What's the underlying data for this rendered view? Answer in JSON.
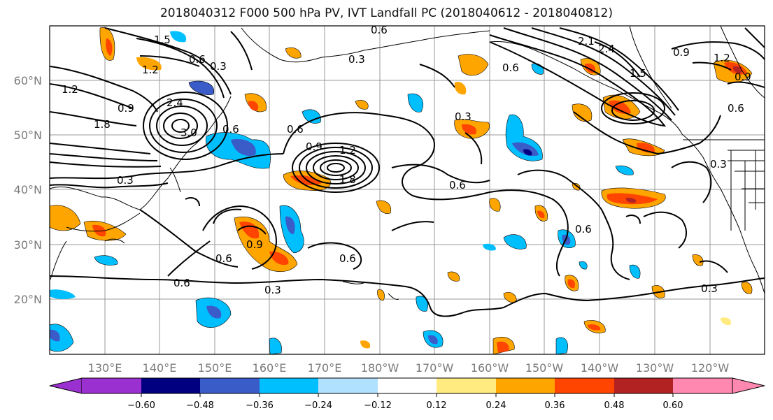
{
  "title": "2018040312 F000 500 hPa PV, IVT Landfall PC (2018040612 - 2018040812)",
  "lat_labels": [
    "60°N",
    "50°N",
    "40°N",
    "30°N",
    "20°N"
  ],
  "lon_labels": [
    "130°E",
    "140°E",
    "150°E",
    "160°E",
    "170°E",
    "180°W",
    "170°W",
    "160°W",
    "150°W",
    "140°W",
    "130°W",
    "120°W"
  ],
  "contour_labels": [
    "1.5",
    "1.8",
    "1.2",
    "0.9",
    "1.2",
    "2.4",
    "3.0",
    "0.6",
    "0.3",
    "0.6",
    "0.3",
    "0.6",
    "0.9",
    "1.2",
    "1.8",
    "0.6",
    "0.3",
    "0.6",
    "0.6",
    "0.9",
    "0.6",
    "0.3",
    "0.6",
    "0.3",
    "2.1",
    "2.4",
    "0.9",
    "1.5",
    "0.6",
    "1.2",
    "0.9",
    "0.6",
    "0.3",
    "0.6",
    "0.3"
  ],
  "colorbar": {
    "ticks": [
      "−0.60",
      "−0.48",
      "−0.36",
      "−0.24",
      "−0.12",
      "0.12",
      "0.24",
      "0.36",
      "0.48",
      "0.60"
    ],
    "colors": [
      "#9b30d0",
      "#000080",
      "#3a5cc8",
      "#00bfff",
      "#b0e2ff",
      "#ffffff",
      "#ffeb80",
      "#ffa500",
      "#ff4500",
      "#b22222",
      "#ff88b0"
    ]
  },
  "colors": {
    "neg_strong": "#3a5cc8",
    "neg_mid": "#00bfff",
    "neg_weak": "#b0e2ff",
    "pos_weak": "#ffeb80",
    "pos_mid": "#ffa500",
    "pos_strong": "#ff4500",
    "pos_max": "#b22222"
  }
}
